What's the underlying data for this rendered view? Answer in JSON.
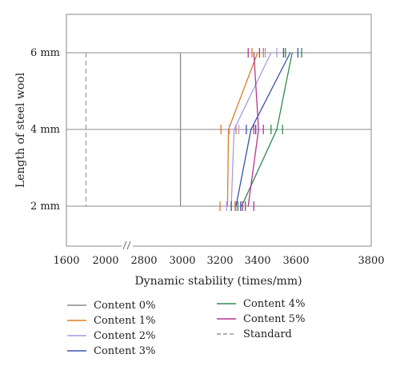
{
  "chart_data": {
    "type": "line",
    "orientation": "horizontal",
    "xlabel": "Dynamic stability (times/mm)",
    "ylabel": "Length of steel wool",
    "x_ticks": [
      "1600",
      "2000",
      "2800",
      "3000",
      "3200",
      "3400",
      "3600",
      "3800"
    ],
    "x_break": "between 2000 and 2800",
    "categories": [
      "2 mm",
      "4 mm",
      "6 mm"
    ],
    "grid": true,
    "legend_position": "bottom",
    "series": [
      {
        "name": "Content 0%",
        "color": "#8c8c8c",
        "values": [
          2990,
          2990,
          2990
        ]
      },
      {
        "name": "Content 1%",
        "color": "#e07b22",
        "values": [
          3240,
          3245,
          3400
        ],
        "errors": [
          40,
          40,
          30
        ]
      },
      {
        "name": "Content 2%",
        "color": "#a79ce0",
        "values": [
          3260,
          3275,
          3470
        ],
        "errors": [
          25,
          25,
          30
        ]
      },
      {
        "name": "Content 3%",
        "color": "#3a51a8",
        "values": [
          3285,
          3365,
          3570
        ],
        "errors": [
          25,
          25,
          35
        ]
      },
      {
        "name": "Content 4%",
        "color": "#2f8a52",
        "values": [
          3315,
          3500,
          3580
        ],
        "errors": [
          20,
          30,
          35
        ]
      },
      {
        "name": "Content 5%",
        "color": "#b4358f",
        "values": [
          3350,
          3405,
          3380
        ],
        "errors": [
          30,
          25,
          30
        ]
      },
      {
        "name": "Standard",
        "color": "#9a9a9a",
        "dashed": true,
        "values": [
          1800,
          1800,
          1800
        ]
      }
    ]
  }
}
